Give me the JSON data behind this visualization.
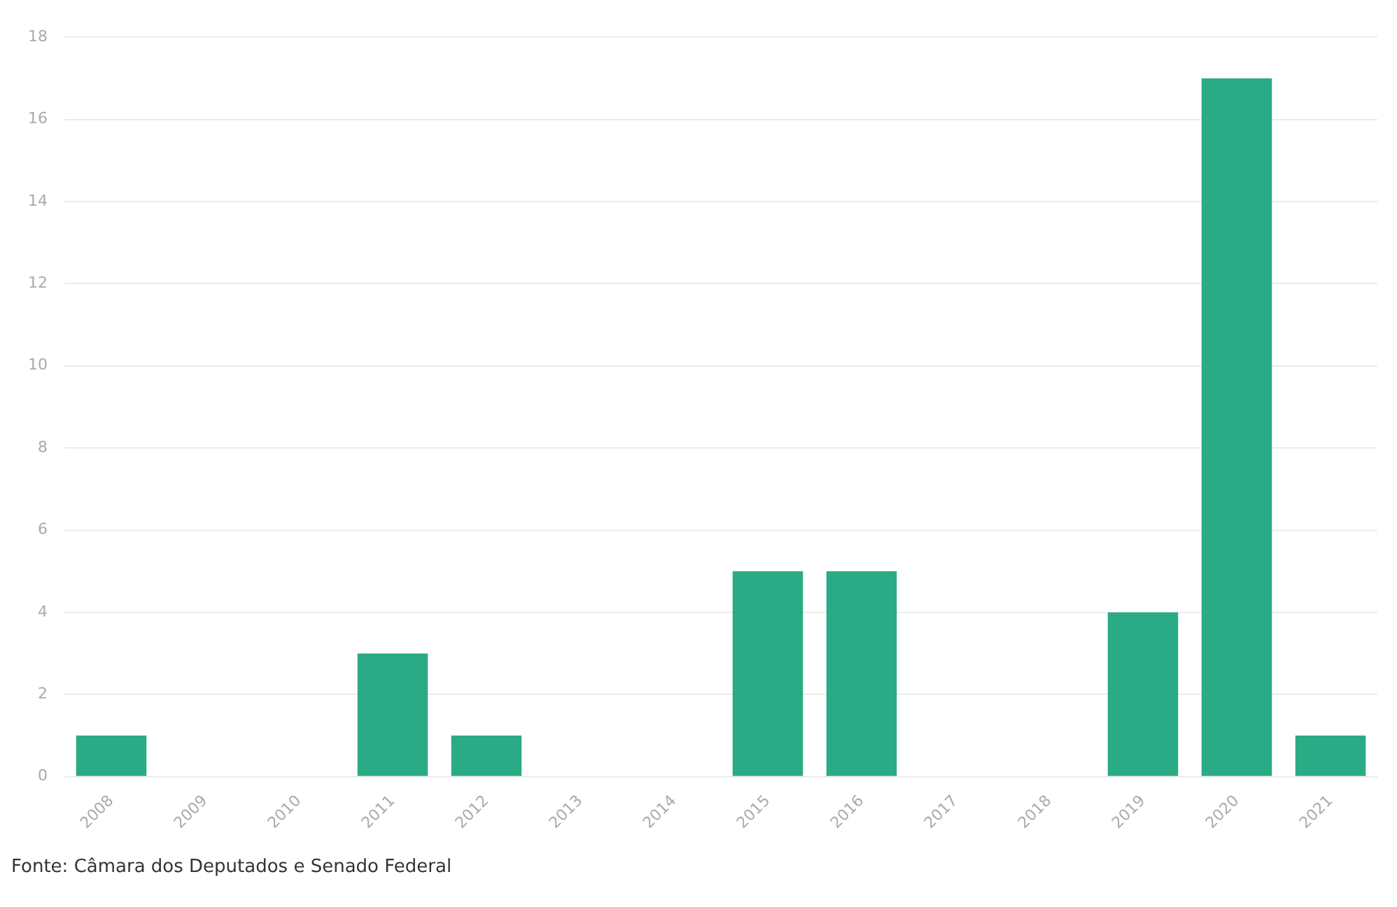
{
  "chart_data": {
    "type": "bar",
    "categories": [
      "2008",
      "2009",
      "2010",
      "2011",
      "2012",
      "2013",
      "2014",
      "2015",
      "2016",
      "2017",
      "2018",
      "2019",
      "2020",
      "2021"
    ],
    "values": [
      1,
      0,
      0,
      3,
      1,
      0,
      0,
      5,
      5,
      0,
      0,
      4,
      17,
      1
    ],
    "color": "#2bab85",
    "ylim": [
      0,
      18
    ],
    "yticks": [
      0,
      2,
      4,
      6,
      8,
      10,
      12,
      14,
      16,
      18
    ],
    "grid": "y",
    "legend": false,
    "annotations": [
      "Fonte: Câmara dos Deputados e Senado Federal"
    ]
  }
}
